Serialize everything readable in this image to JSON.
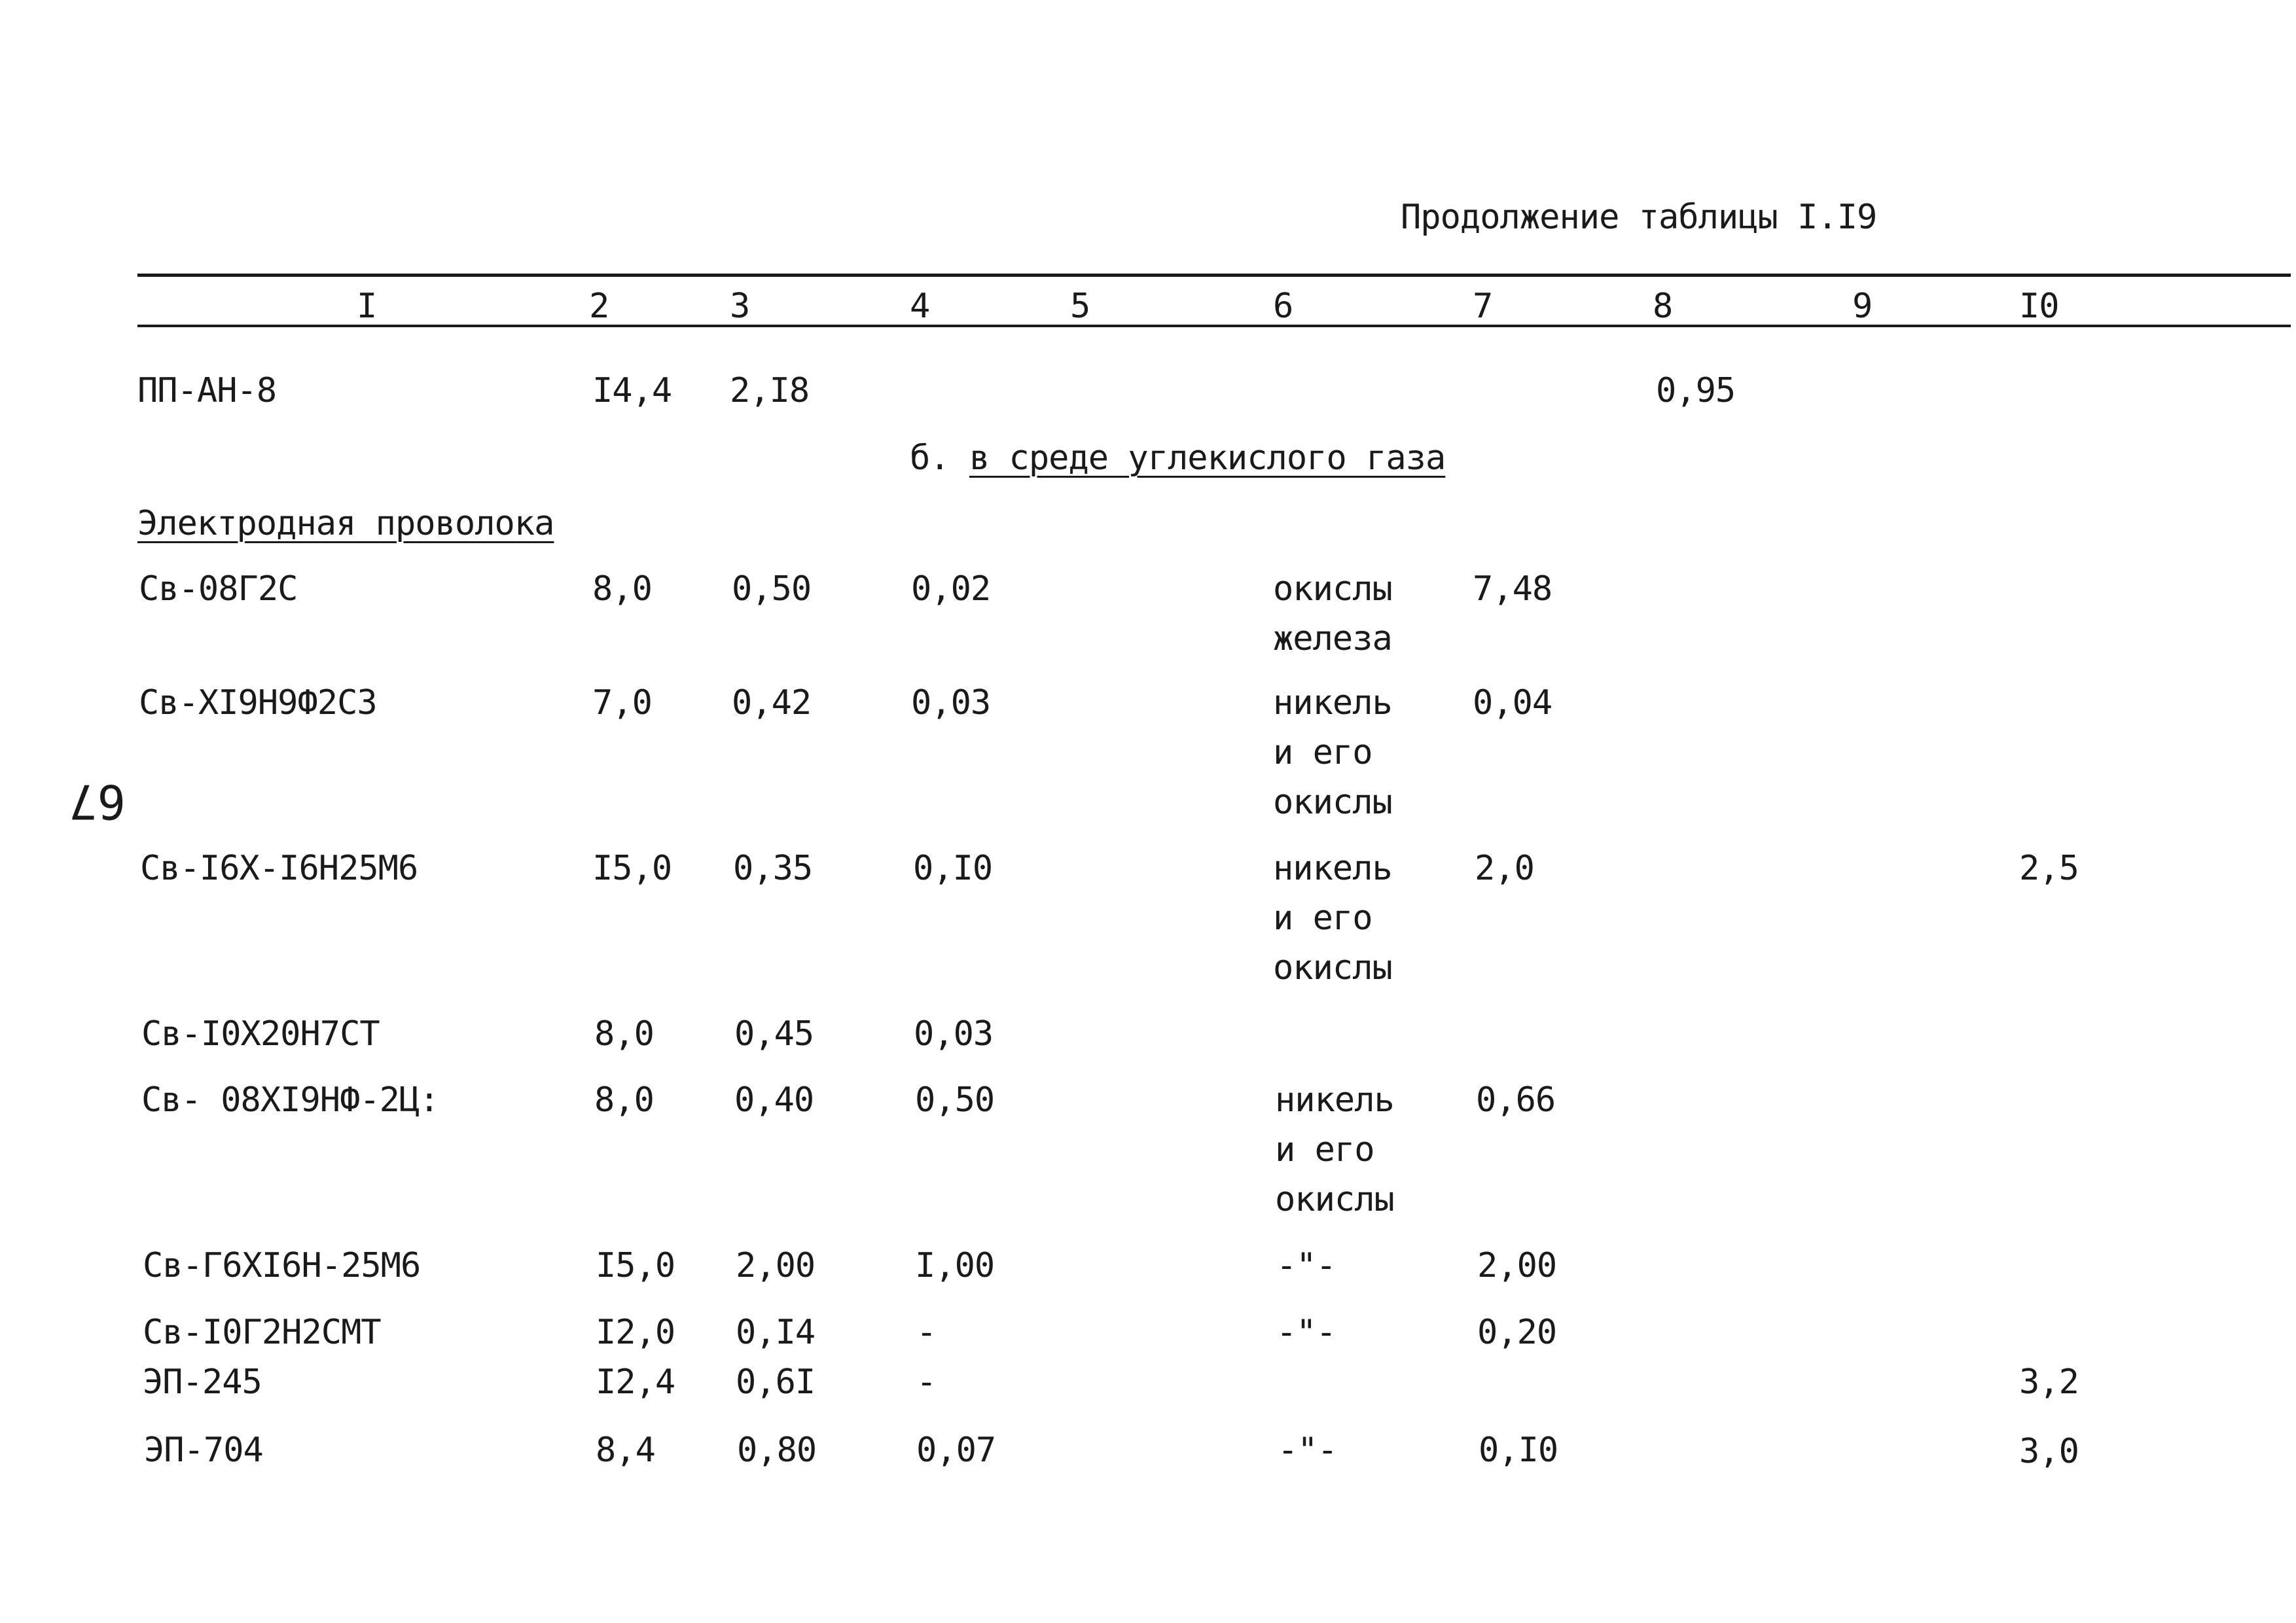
{
  "page": {
    "caption": "Продолжение таблицы I.I9",
    "page_number": "67"
  },
  "table": {
    "headers": [
      "I",
      "2",
      "3",
      "4",
      "5",
      "6",
      "7",
      "8",
      "9",
      "I0"
    ],
    "section_title_prefix": "б.",
    "section_title": "в среде углекислого газа",
    "group_label": "Электродная проволока",
    "rows": [
      {
        "c1": "ПП-АН-8",
        "c2": "I4,4",
        "c3": "2,I8",
        "c4": "",
        "c6": [
          ""
        ],
        "c7": "",
        "c8": "0,95",
        "c10": ""
      },
      {
        "c1": "Св-08Г2С",
        "c2": "8,0",
        "c3": "0,50",
        "c4": "0,02",
        "c6": [
          "окислы",
          "железа"
        ],
        "c7": "7,48",
        "c8": "",
        "c10": ""
      },
      {
        "c1": "Св-XI9Н9Ф2С3",
        "c2": "7,0",
        "c3": "0,42",
        "c4": "0,03",
        "c6": [
          "никель",
          "и его",
          "окислы"
        ],
        "c7": "0,04",
        "c8": "",
        "c10": ""
      },
      {
        "c1": "Св-I6X-I6Н25М6",
        "c2": "I5,0",
        "c3": "0,35",
        "c4": "0,I0",
        "c6": [
          "никель",
          "и его",
          "окислы"
        ],
        "c7": "2,0",
        "c8": "",
        "c10": "2,5"
      },
      {
        "c1": "Св-I0X20Н7СТ",
        "c2": "8,0",
        "c3": "0,45",
        "c4": "0,03",
        "c6": [
          ""
        ],
        "c7": "",
        "c8": "",
        "c10": ""
      },
      {
        "c1": "Св- 08XI9НФ-2Ц:",
        "c2": "8,0",
        "c3": "0,40",
        "c4": "0,50",
        "c6": [
          "никель",
          "и его",
          "окислы"
        ],
        "c7": "0,66",
        "c8": "",
        "c10": ""
      },
      {
        "c1": "Св-Г6XI6Н-25М6",
        "c2": "I5,0",
        "c3": "2,00",
        "c4": "I,00",
        "c6": [
          "-\"-"
        ],
        "c7": "2,00",
        "c8": "",
        "c10": ""
      },
      {
        "c1": "Св-I0Г2Н2СМТ",
        "c2": "I2,0",
        "c3": "0,I4",
        "c4": "-",
        "c6": [
          "-\"-"
        ],
        "c7": "0,20",
        "c8": "",
        "c10": ""
      },
      {
        "c1": "ЭП-245",
        "c2": "I2,4",
        "c3": "0,6I",
        "c4": "-",
        "c6": [
          ""
        ],
        "c7": "",
        "c8": "",
        "c10": "3,2"
      },
      {
        "c1": "ЭП-704",
        "c2": "8,4",
        "c3": "0,80",
        "c4": "0,07",
        "c6": [
          "-\"-"
        ],
        "c7": "0,I0",
        "c8": "",
        "c10": "3,0"
      }
    ]
  }
}
